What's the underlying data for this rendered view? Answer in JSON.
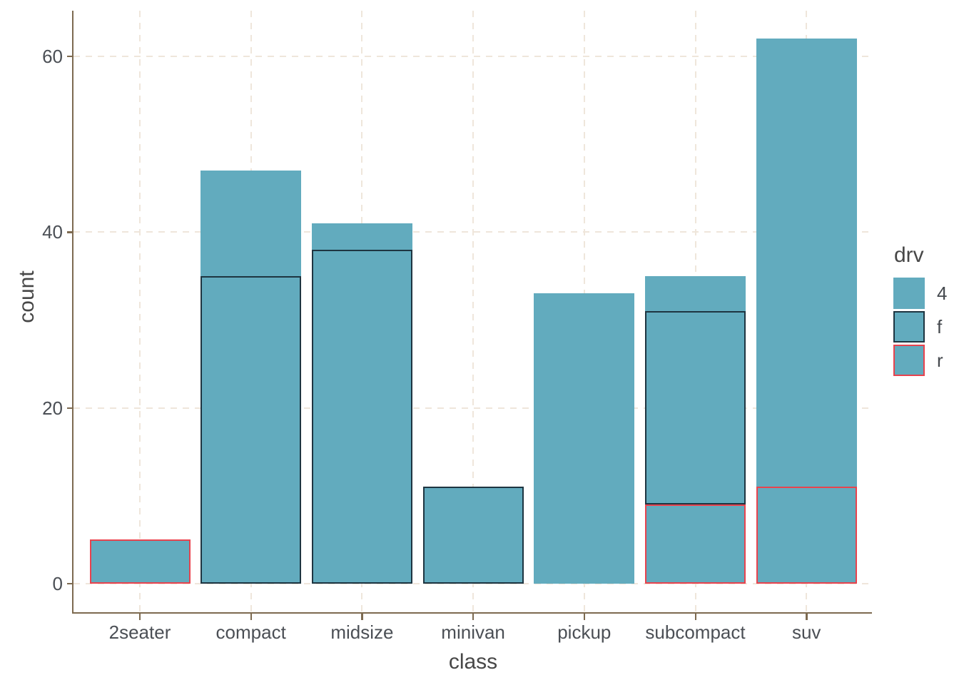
{
  "chart_data": {
    "type": "bar",
    "stacked": true,
    "title": "",
    "xlabel": "class",
    "ylabel": "count",
    "categories": [
      "2seater",
      "compact",
      "midsize",
      "minivan",
      "pickup",
      "subcompact",
      "suv"
    ],
    "series": [
      {
        "name": "4",
        "values": [
          0,
          12,
          3,
          0,
          33,
          4,
          51
        ]
      },
      {
        "name": "f",
        "values": [
          0,
          35,
          38,
          11,
          0,
          22,
          0
        ]
      },
      {
        "name": "r",
        "values": [
          5,
          0,
          0,
          0,
          0,
          9,
          11
        ]
      }
    ],
    "stack_totals": [
      5,
      47,
      41,
      11,
      33,
      35,
      62
    ],
    "stack_order_bottom_to_top": [
      "r",
      "f",
      "4"
    ],
    "y_ticks": [
      "0",
      "20",
      "40",
      "60"
    ],
    "y_tick_values": [
      0,
      20,
      40,
      60
    ],
    "ylim": [
      0,
      65
    ],
    "grid": "major-only, dashed, both axes",
    "legend": {
      "title": "drv",
      "position": "right",
      "entries": [
        {
          "label": "4",
          "fill": "#62ABBE",
          "outline": "none"
        },
        {
          "label": "f",
          "fill": "#62ABBE",
          "outline": "#1E3541"
        },
        {
          "label": "r",
          "fill": "#62ABBE",
          "outline": "#E8434E"
        }
      ]
    }
  },
  "style": {
    "bar_fill": "#62ABBE",
    "outline_4": "none",
    "outline_f": "#1E3541",
    "outline_r": "#E8434E",
    "axis_line": "#7D6A50",
    "gridline": "#EFE6DB",
    "tick_label_color": "#4B4F55",
    "title_color": "#474747",
    "background": "#FFFFFF"
  }
}
